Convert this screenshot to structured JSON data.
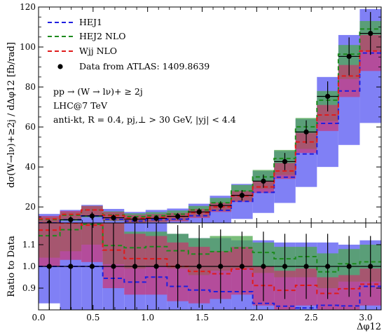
{
  "chart_data": [
    {
      "type": "line",
      "panel": "main",
      "ylabel": "dσ(W→lν)+≥2j / dΔφ12 [fb/rad]",
      "xlim": [
        0,
        3.1416
      ],
      "ylim": [
        12,
        120
      ],
      "yticks": [
        20,
        40,
        60,
        80,
        100,
        120
      ],
      "bin_edges": [
        0.0,
        0.1963,
        0.3927,
        0.589,
        0.7854,
        0.9817,
        1.1781,
        1.3744,
        1.5708,
        1.7671,
        1.9635,
        2.1598,
        2.3562,
        2.5525,
        2.7489,
        2.9452,
        3.1416
      ],
      "legend_position": "top-left",
      "series": [
        {
          "name": "HEJ1",
          "style": "histogram-band-dashed",
          "color": "#1f1fe0",
          "band_color": "#8080f5",
          "central": [
            12.0,
            13.6,
            15.5,
            13.8,
            12.9,
            13.6,
            13.9,
            15.6,
            18.3,
            22.8,
            27.3,
            34.9,
            46.5,
            61.8,
            78.0,
            97.0
          ],
          "band_low": [
            10.0,
            10.0,
            10.0,
            10.0,
            10.0,
            10.0,
            10.0,
            10.0,
            12.0,
            14.0,
            17.0,
            22.0,
            30.0,
            40.0,
            51.0,
            62.0
          ],
          "band_high": [
            16.5,
            18.5,
            21.0,
            19.0,
            17.5,
            18.5,
            19.2,
            21.6,
            25.6,
            31.5,
            38.0,
            48.0,
            64.0,
            85.0,
            106.0,
            119.0
          ]
        },
        {
          "name": "HEJ2 NLO",
          "style": "histogram-band-dashed",
          "color": "#1d8a1d",
          "band_color": "#4ea84e",
          "central": [
            13.7,
            15.9,
            18.5,
            16.0,
            15.1,
            15.6,
            16.4,
            18.5,
            22.1,
            28.0,
            35.0,
            44.2,
            60.1,
            73.4,
            96.4,
            109.0
          ],
          "band_low": [
            11.5,
            13.0,
            14.8,
            13.0,
            12.0,
            12.5,
            13.2,
            15.0,
            18.0,
            23.0,
            29.0,
            36.0,
            49.0,
            63.0,
            84.0,
            98.0
          ],
          "band_high": [
            15.0,
            17.5,
            20.5,
            17.8,
            16.8,
            17.4,
            18.2,
            20.5,
            24.5,
            31.0,
            38.5,
            48.5,
            64.5,
            78.0,
            101.0,
            113.0
          ]
        },
        {
          "name": "Wjj NLO",
          "style": "histogram-band-dashed",
          "color": "#e01b1b",
          "band_color": "#d0306a",
          "central": [
            14.0,
            16.3,
            18.5,
            15.7,
            14.4,
            14.8,
            15.3,
            17.1,
            20.0,
            25.5,
            30.0,
            38.0,
            52.5,
            66.0,
            85.5,
            98.0
          ],
          "band_low": [
            12.0,
            14.0,
            15.8,
            13.2,
            12.0,
            12.4,
            12.8,
            14.5,
            17.5,
            22.5,
            27.0,
            34.0,
            47.0,
            58.0,
            75.0,
            88.0
          ],
          "band_high": [
            15.5,
            18.0,
            20.5,
            17.5,
            16.0,
            16.4,
            17.0,
            19.0,
            22.2,
            28.0,
            32.8,
            42.0,
            57.0,
            71.0,
            91.0,
            106.0
          ]
        },
        {
          "name": "Data from ATLAS: 1409.8639",
          "style": "points",
          "color": "#000000",
          "x": [
            0.0982,
            0.2945,
            0.4909,
            0.6872,
            0.8836,
            1.0799,
            1.2763,
            1.4726,
            1.669,
            1.8653,
            2.0617,
            2.258,
            2.4544,
            2.6507,
            2.8471,
            3.0434
          ],
          "y": [
            12.0,
            13.6,
            15.5,
            14.6,
            13.9,
            14.3,
            15.3,
            17.5,
            20.7,
            25.8,
            32.9,
            42.7,
            57.5,
            75.3,
            95.3,
            106.8
          ],
          "yerr": [
            1.6,
            1.7,
            2.0,
            1.6,
            1.4,
            1.6,
            1.7,
            1.8,
            2.1,
            2.6,
            3.3,
            4.3,
            5.8,
            7.5,
            9.5,
            10.7
          ]
        }
      ],
      "annotations": [
        "pp → (W → lν)+ ≥ 2j",
        "LHC@7 TeV",
        "anti-kt, R = 0.4, pj,⊥ > 30 GeV, |yj| < 4.4"
      ]
    },
    {
      "type": "line",
      "panel": "ratio",
      "xlabel": "Δφ12",
      "ylabel": "Ratio to Data",
      "xlim": [
        0,
        3.1416
      ],
      "ylim": [
        0.8,
        1.2
      ],
      "xticks": [
        0.0,
        0.5,
        1.0,
        1.5,
        2.0,
        2.5,
        3.0
      ],
      "yticks": [
        0.9,
        1.0,
        1.1
      ],
      "series": [
        {
          "name": "HEJ1",
          "color": "#1f1fe0",
          "band_color": "#8080f5",
          "central": [
            1.0,
            1.0,
            1.0,
            0.945,
            0.928,
            0.951,
            0.908,
            0.891,
            0.884,
            0.884,
            0.83,
            0.817,
            0.809,
            0.821,
            0.818,
            0.908
          ],
          "band_low": [
            0.83,
            0.78,
            0.79,
            0.79,
            0.78,
            0.78,
            0.76,
            0.76,
            0.76,
            0.75,
            0.72,
            0.71,
            0.72,
            0.73,
            0.73,
            0.73
          ],
          "band_high": [
            1.2,
            1.2,
            1.2,
            1.2,
            1.2,
            1.2,
            1.15,
            1.13,
            1.13,
            1.12,
            1.12,
            1.11,
            1.11,
            1.11,
            1.1,
            1.12
          ]
        },
        {
          "name": "HEJ2 NLO",
          "color": "#1d8a1d",
          "band_color": "#4ea84e",
          "central": [
            1.141,
            1.169,
            1.194,
            1.096,
            1.086,
            1.091,
            1.072,
            1.057,
            1.068,
            1.085,
            1.064,
            1.035,
            1.045,
            0.975,
            1.012,
            1.021
          ],
          "band_low": [
            1.04,
            1.07,
            1.1,
            1.01,
            0.99,
            1.0,
            0.99,
            0.96,
            0.98,
            0.99,
            0.97,
            0.95,
            0.95,
            0.9,
            0.93,
            0.93
          ],
          "band_high": [
            1.2,
            1.2,
            1.2,
            1.2,
            1.16,
            1.16,
            1.15,
            1.13,
            1.14,
            1.14,
            1.11,
            1.09,
            1.09,
            1.06,
            1.08,
            1.1
          ]
        },
        {
          "name": "Wjj NLO",
          "color": "#e01b1b",
          "band_color": "#d0306a",
          "central": [
            1.167,
            1.199,
            1.19,
            1.075,
            1.036,
            1.035,
            1.0,
            0.977,
            0.966,
            0.988,
            0.912,
            0.89,
            0.913,
            0.876,
            0.897,
            0.918
          ],
          "band_low": [
            1.0,
            1.03,
            1.02,
            0.9,
            0.87,
            0.87,
            0.84,
            0.83,
            0.85,
            0.87,
            0.82,
            0.8,
            0.82,
            0.78,
            0.79,
            0.82
          ],
          "band_high": [
            1.2,
            1.2,
            1.2,
            1.2,
            1.15,
            1.14,
            1.11,
            1.09,
            1.07,
            1.09,
            1.0,
            0.98,
            0.99,
            0.95,
            0.96,
            0.99
          ]
        },
        {
          "name": "Data from ATLAS: 1409.8639",
          "color": "#000000",
          "y": [
            1.0,
            1.0,
            1.0,
            1.0,
            1.0,
            1.0,
            1.0,
            1.0,
            1.0,
            1.0,
            1.0,
            1.0,
            1.0,
            1.0,
            1.0,
            1.0
          ],
          "yerr": [
            0.28,
            0.27,
            0.26,
            0.21,
            0.2,
            0.2,
            0.19,
            0.19,
            0.17,
            0.16,
            0.16,
            0.15,
            0.15,
            0.15,
            0.14,
            0.14
          ]
        }
      ]
    }
  ],
  "labels": {
    "legend_hej1": "HEJ1",
    "legend_hej2": "HEJ2 NLO",
    "legend_wjj": "Wjj NLO",
    "legend_data": "Data from ATLAS: 1409.8639",
    "process": "pp → (W → lν)+ ≥ 2j",
    "energy": "LHC@7 TeV",
    "cuts": "anti-kt, R = 0.4, pj,⊥ > 30 GeV, |yj| < 4.4",
    "ratio_ylabel": "Ratio to Data",
    "xlabel": "Δφ12"
  }
}
